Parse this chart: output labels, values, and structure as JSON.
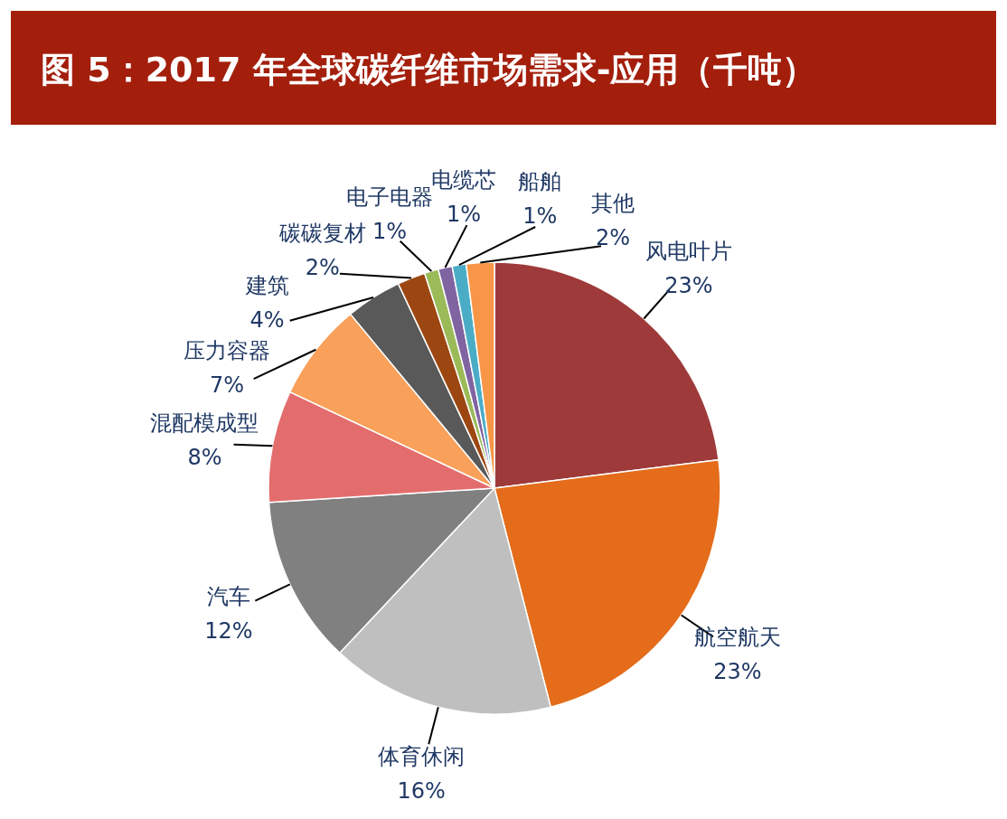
{
  "chart_data": {
    "type": "pie",
    "title": "图 5：2017 年全球碳纤维市场需求-应用（千吨）",
    "categories": [
      "风电叶片",
      "航空航天",
      "体育休闲",
      "汽车",
      "混配模成型",
      "压力容器",
      "建筑",
      "碳碳复材",
      "电子电器",
      "电缆芯",
      "船舶",
      "其他"
    ],
    "values": [
      23,
      23,
      16,
      12,
      8,
      7,
      4,
      2,
      1,
      1,
      1,
      2
    ],
    "value_labels": [
      "23%",
      "23%",
      "16%",
      "12%",
      "8%",
      "7%",
      "4%",
      "2%",
      "1%",
      "1%",
      "1%",
      "2%"
    ],
    "colors": [
      "#9e3a3a",
      "#e46c1a",
      "#bfbfbf",
      "#808080",
      "#e36d6d",
      "#f9a05a",
      "#595959",
      "#9c4712",
      "#9bbb59",
      "#8064a2",
      "#4bacc6",
      "#f79646"
    ],
    "legend": false
  }
}
